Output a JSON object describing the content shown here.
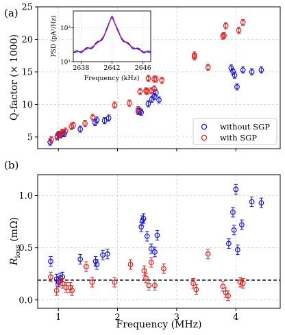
{
  "colors": {
    "blue": "#1515e6",
    "red": "#e0201b",
    "grid": "#d2d2d2",
    "fit": "#cf2a7a"
  },
  "chart_data": [
    {
      "type": "scatter",
      "panel_label": "(a)",
      "xlabel": "",
      "ylabel": "Q-factor (× 1000)",
      "xlim": [
        0.65,
        4.75
      ],
      "ylim": [
        3.2,
        25
      ],
      "yticks": [
        "5",
        "10",
        "15",
        "20",
        "25"
      ],
      "grid": true,
      "legend_position": "lower-right",
      "series": [
        {
          "name": "without SGP",
          "color": "blue",
          "x": [
            0.86,
            0.98,
            1.0,
            1.04,
            1.08,
            1.1,
            1.37,
            1.62,
            1.65,
            1.78,
            1.85,
            2.35,
            2.38,
            2.4,
            2.52,
            2.58,
            2.62,
            2.65,
            2.7,
            3.92,
            3.95,
            3.98,
            4.02,
            4.12,
            4.27,
            4.43
          ],
          "y": [
            4.2,
            5.1,
            5.4,
            5.3,
            5.6,
            5.5,
            6.2,
            7.2,
            7.6,
            7.5,
            7.9,
            8.9,
            9.0,
            8.8,
            10.1,
            10.8,
            11.2,
            11.8,
            10.7,
            15.6,
            15.1,
            14.5,
            12.7,
            15.3,
            15.0,
            15.3
          ]
        },
        {
          "name": "with SGP",
          "color": "red",
          "x": [
            0.88,
            0.98,
            1.02,
            1.06,
            1.12,
            1.22,
            1.25,
            1.45,
            1.58,
            1.95,
            2.2,
            2.35,
            2.38,
            2.48,
            2.5,
            2.52,
            2.57,
            2.62,
            2.62,
            2.65,
            2.75,
            3.3,
            3.3,
            3.53,
            3.78,
            3.8,
            3.83,
            4.05,
            4.12
          ],
          "y": [
            4.6,
            5.0,
            5.3,
            5.7,
            5.9,
            6.6,
            6.8,
            7.1,
            8.0,
            9.9,
            10.2,
            9.2,
            12.0,
            12.1,
            12.0,
            14.0,
            12.1,
            13.9,
            12.4,
            13.9,
            13.7,
            17.3,
            17.6,
            15.7,
            20.5,
            20.6,
            22.1,
            21.4,
            22.6
          ]
        }
      ]
    },
    {
      "type": "line",
      "inset": true,
      "xlabel": "Frequency (kHz)",
      "ylabel": "PSD (pA²/Hz)",
      "xlim": [
        2637,
        2647
      ],
      "xticks": [
        "2638",
        "2642",
        "2646"
      ],
      "yticks": [
        "10¹",
        "10³"
      ],
      "ylog_range": [
        1,
        4
      ],
      "peak_frequency": 2642,
      "peak_psd": 5000,
      "fit_color": "fit",
      "data_color": "blue"
    },
    {
      "type": "scatter",
      "panel_label": "(b)",
      "xlabel": "Frequency (MHz)",
      "ylabel": "R",
      "ylabel_sub": "loss",
      "ylabel_unit": " (mΩ)",
      "xlim": [
        0.65,
        4.75
      ],
      "ylim": [
        -0.08,
        1.2
      ],
      "xticks": [
        "1",
        "2",
        "3",
        "4"
      ],
      "yticks": [
        "0.0",
        "0.5",
        "1.0"
      ],
      "reference_line": 0.19,
      "grid": true,
      "series": [
        {
          "name": "without SGP",
          "color": "blue",
          "x": [
            0.87,
            0.97,
            1.0,
            1.03,
            1.07,
            1.37,
            1.63,
            1.65,
            1.75,
            1.83,
            2.4,
            2.42,
            2.44,
            2.5,
            2.57,
            2.63,
            2.67,
            3.88,
            3.95,
            3.97,
            4.0,
            4.03,
            4.1,
            4.27,
            4.43
          ],
          "y": [
            0.37,
            0.2,
            0.17,
            0.21,
            0.22,
            0.39,
            0.37,
            0.34,
            0.43,
            0.44,
            0.7,
            0.76,
            0.78,
            0.61,
            0.49,
            0.46,
            0.62,
            0.54,
            0.84,
            0.67,
            1.06,
            0.48,
            0.72,
            0.94,
            0.93
          ]
        },
        {
          "name": "with SGP",
          "color": "red",
          "x": [
            0.87,
            0.97,
            1.02,
            1.07,
            1.13,
            1.2,
            1.23,
            1.47,
            1.57,
            1.95,
            2.22,
            2.45,
            2.48,
            2.53,
            2.57,
            2.63,
            2.78,
            3.28,
            3.33,
            3.53,
            3.78,
            3.83,
            3.87,
            4.07,
            4.12
          ],
          "y": [
            0.22,
            0.09,
            0.18,
            0.16,
            0.12,
            0.12,
            0.09,
            0.32,
            0.17,
            0.17,
            0.34,
            0.28,
            0.21,
            0.14,
            0.36,
            0.14,
            0.3,
            0.16,
            0.1,
            0.44,
            0.13,
            0.07,
            0.04,
            0.17,
            0.16
          ]
        }
      ]
    }
  ]
}
